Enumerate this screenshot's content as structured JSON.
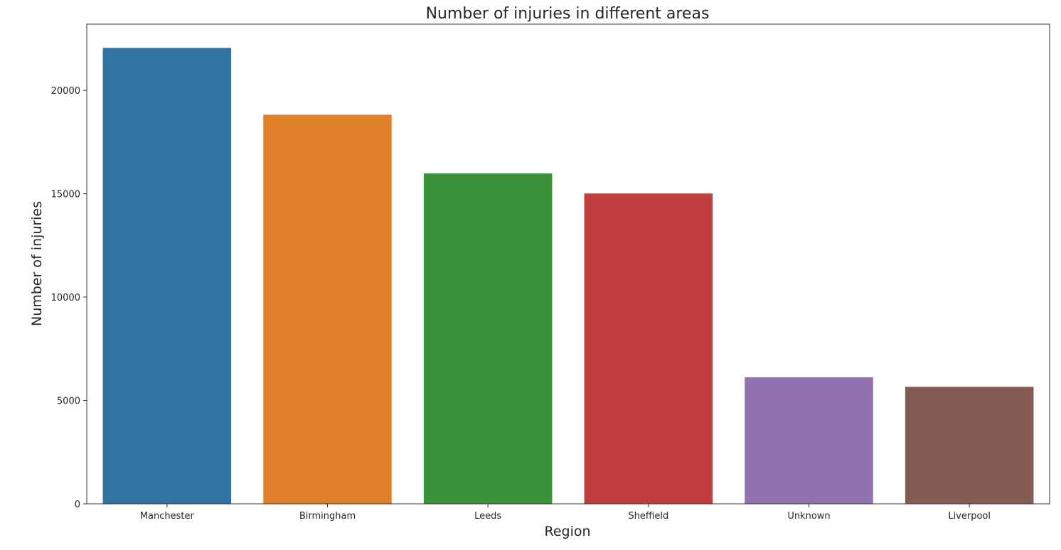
{
  "chart_data": {
    "type": "bar",
    "title": "Number of injuries in different areas",
    "xlabel": "Region",
    "ylabel": "Number of injuries",
    "categories": [
      "Manchester",
      "Birmingham",
      "Leeds",
      "Sheffield",
      "Unknown",
      "Liverpool"
    ],
    "values": [
      22050,
      18820,
      15980,
      15010,
      6120,
      5660
    ],
    "colors": [
      "#3274a1",
      "#e1812c",
      "#3a923a",
      "#c03d3e",
      "#9372b2",
      "#845b53"
    ],
    "ylim": [
      0,
      23200
    ],
    "yticks": [
      0,
      5000,
      10000,
      15000,
      20000
    ],
    "ytick_labels": [
      "0",
      "5000",
      "10000",
      "15000",
      "20000"
    ],
    "grid": false,
    "legend": "none"
  }
}
